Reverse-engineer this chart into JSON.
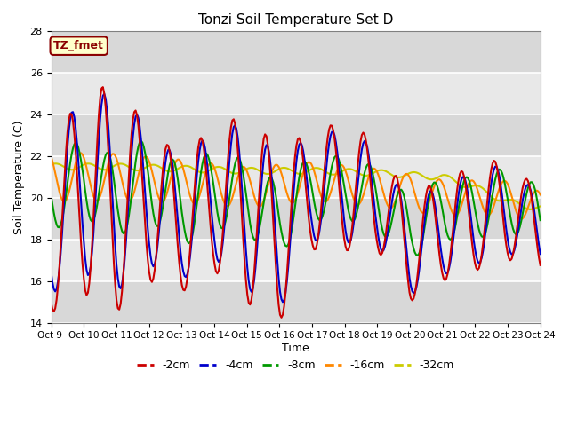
{
  "title": "Tonzi Soil Temperature Set D",
  "xlabel": "Time",
  "ylabel": "Soil Temperature (C)",
  "ylim": [
    14,
    28
  ],
  "yticks": [
    14,
    16,
    18,
    20,
    22,
    24,
    26,
    28
  ],
  "annotation_text": "TZ_fmet",
  "annotation_bbox_facecolor": "#ffffcc",
  "annotation_bbox_edgecolor": "#8B0000",
  "legend_entries": [
    "-2cm",
    "-4cm",
    "-8cm",
    "-16cm",
    "-32cm"
  ],
  "line_colors": [
    "#cc0000",
    "#0000cc",
    "#009900",
    "#ff8800",
    "#cccc00"
  ],
  "background_color": "#e8e8e8",
  "background_light": "#f0f0f0",
  "xtick_labels": [
    "Oct 9 ",
    "Oct 10",
    "Oct 11",
    "Oct 12",
    "Oct 13",
    "Oct 14",
    "Oct 15",
    "Oct 16",
    "Oct 17",
    "Oct 18",
    "Oct 19",
    "Oct 20",
    "Oct 21",
    "Oct 22",
    "Oct 23",
    "Oct 24"
  ],
  "grid_color": "white",
  "linewidth": 1.5
}
